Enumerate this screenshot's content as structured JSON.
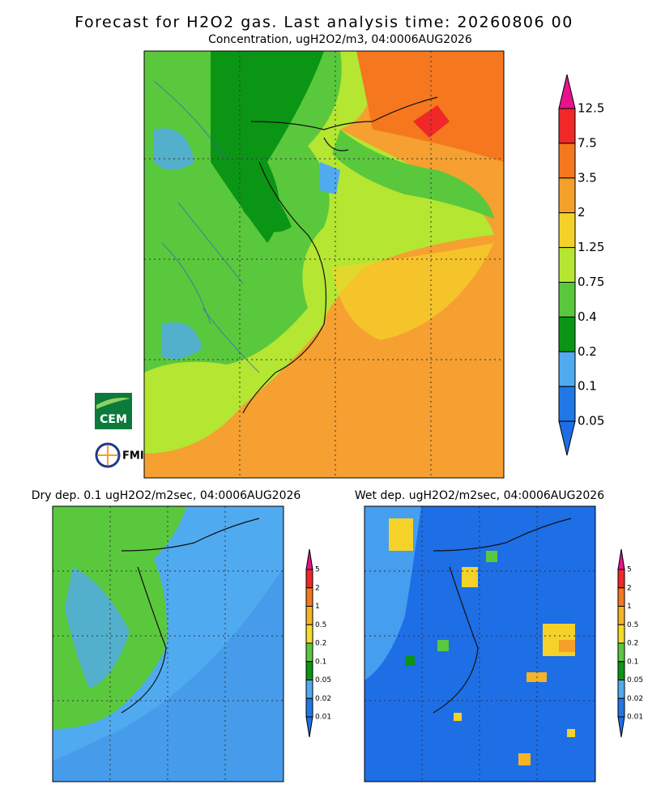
{
  "header": {
    "title": "Forecast for H2O2 gas. Last analysis time: 20260806 00",
    "subtitle": "Concentration, ugH2O2/m3, 04:0006AUG2026"
  },
  "logos": {
    "cem": "CEM",
    "fmi": "FMI"
  },
  "main_legend": {
    "labels": [
      "12.5",
      "7.5",
      "3.5",
      "2",
      "1.25",
      "0.75",
      "0.4",
      "0.2",
      "0.1",
      "0.05"
    ],
    "colors": [
      "#e8138c",
      "#f02828",
      "#f5781e",
      "#f5a028",
      "#f5d228",
      "#b4e632",
      "#5ac83c",
      "#0a9614",
      "#50aaf0",
      "#2078e6",
      "#1e6ee6"
    ]
  },
  "dry_panel": {
    "title": "Dry dep. 0.1 ugH2O2/m2sec, 04:0006AUG2026"
  },
  "wet_panel": {
    "title": "Wet dep. ugH2O2/m2sec, 04:0006AUG2026"
  },
  "small_legend": {
    "labels": [
      "5",
      "2",
      "1",
      "0.5",
      "0.2",
      "0.1",
      "0.05",
      "0.02",
      "0.01"
    ],
    "colors": [
      "#e8138c",
      "#f02828",
      "#f5781e",
      "#f5b428",
      "#f5dc28",
      "#5ac83c",
      "#0a9614",
      "#50aaf0",
      "#2078e6",
      "#1e6ee6"
    ]
  }
}
